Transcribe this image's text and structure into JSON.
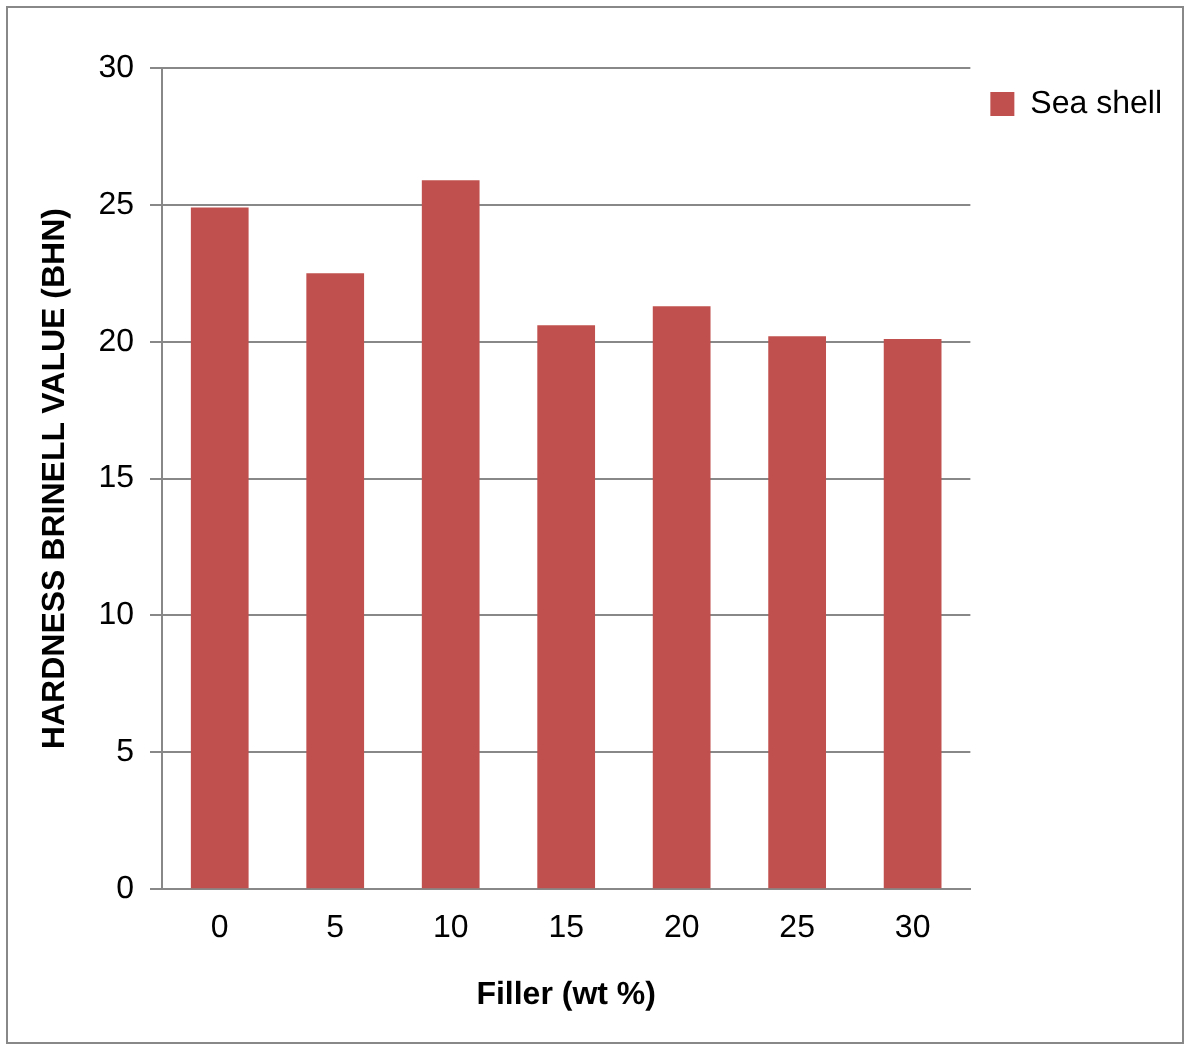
{
  "chart_data": {
    "type": "bar",
    "xlabel": "Filler (wt %)",
    "ylabel": "HARDNESS BRINELL VALUE (BHN)",
    "categories": [
      "0",
      "5",
      "10",
      "15",
      "20",
      "25",
      "30"
    ],
    "series": [
      {
        "name": "Sea shell",
        "color": "#c0504d",
        "values": [
          24.9,
          22.5,
          25.9,
          20.6,
          21.3,
          20.2,
          20.1
        ]
      }
    ],
    "ylim": [
      0,
      30
    ],
    "yticks": [
      0,
      5,
      10,
      15,
      20,
      25,
      30
    ],
    "grid": "y",
    "legend": "right"
  }
}
